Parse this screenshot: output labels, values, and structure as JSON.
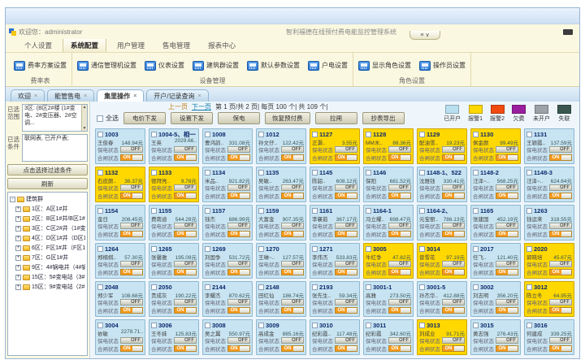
{
  "window": {
    "welcome": "欢迎您：administrator",
    "title": "智利福德在线预付费电能监控管理系统",
    "collapse_glyphs": "≡ ∨"
  },
  "menu": {
    "items": [
      {
        "label": "个人设置"
      },
      {
        "label": "系统配置",
        "active": true
      },
      {
        "label": "用户管理"
      },
      {
        "label": "售电管理"
      },
      {
        "label": "报表中心"
      }
    ]
  },
  "ribbon": {
    "groups": [
      {
        "label": "费率表",
        "buttons": [
          "费率方案设置"
        ]
      },
      {
        "label": "设备管理",
        "buttons": [
          "通信管理机设置",
          "仪表设置",
          "建筑群设置",
          "默认参数设置",
          "户电设置"
        ]
      },
      {
        "label": "角色设置",
        "buttons": [
          "显示角色设置",
          "操作员设置"
        ]
      }
    ]
  },
  "tabs": [
    {
      "label": "欢迎"
    },
    {
      "label": "能管售电"
    },
    {
      "label": "集里操作",
      "active": true
    },
    {
      "label": "开户/记录查询"
    }
  ],
  "sidebar": {
    "range_label": "已选范围",
    "range_text": "3区: (B区2#楼 (1#变电、2#变压器、2#空调...",
    "cond_label": "已选条件",
    "cond_text": "联网表, 已开户表;",
    "filter_button": "点击选择过滤条件",
    "refresh_button": "刷新",
    "tree_root": "建筑群",
    "tree_nodes": [
      {
        "label": "1区：A区1#井"
      },
      {
        "label": "2区：B区1#井/B区1#井"
      },
      {
        "label": "3区：C区2#井（1#变"
      },
      {
        "label": "4区：D区1#井（D区1"
      },
      {
        "label": "6区：F区1#井（F区1#"
      },
      {
        "label": "7区：G区1#井"
      },
      {
        "label": "9区：4#锅电井（4#锅"
      },
      {
        "label": "15区：5#变电站（3#变"
      },
      {
        "label": "15区：9#变电站（2#"
      }
    ]
  },
  "toolbar": {
    "prev": "上一页",
    "next": "下一页",
    "page_info": "第 1 页/共 2 页| 每页 100 个| 共 109 个|",
    "select_all": "全选",
    "buttons": [
      "电价下发",
      "设置下发",
      "保电",
      "恢复预付费",
      "拉闸",
      "抄表导出"
    ]
  },
  "legend": [
    {
      "label": "已开户",
      "color": "#b9dff0"
    },
    {
      "label": "报警1",
      "color": "#ffd800"
    },
    {
      "label": "报警2",
      "color": "#f04a11"
    },
    {
      "label": "欠费",
      "color": "#9a1f9e"
    },
    {
      "label": "未开户",
      "color": "#9da2a6"
    },
    {
      "label": "失联",
      "color": "#39564f"
    }
  ],
  "card_labels": {
    "power_protect": "保电状态",
    "switch": "合闸状态",
    "on": "ON",
    "off": "OFF"
  },
  "cards": [
    {
      "room": "1003",
      "name": "王俊春",
      "balance": "148.94元",
      "status": "open"
    },
    {
      "room": "1004-5、相一",
      "name": "王英",
      "balance": "2029.66..",
      "status": "open"
    },
    {
      "room": "1008",
      "name": "曹鸿韵..",
      "balance": "331.08元",
      "status": "open"
    },
    {
      "room": "1012",
      "name": "孙文仔..",
      "balance": "122.42元",
      "status": "open"
    },
    {
      "room": "1127",
      "name": "正灏..",
      "balance": "3.55元",
      "status": "alarm1"
    },
    {
      "room": "1128",
      "name": "MM木..",
      "balance": "88.36元",
      "status": "alarm1"
    },
    {
      "room": "1129",
      "name": "配油雪..",
      "balance": "19.23元",
      "status": "alarm1"
    },
    {
      "room": "1130",
      "name": "佩金颜",
      "balance": "99.49元",
      "status": "alarm1"
    },
    {
      "room": "1131",
      "name": "王颖霞..",
      "balance": "137.59元",
      "status": "open"
    },
    {
      "room": "1132",
      "name": "石皮颜..",
      "balance": "36.37元",
      "status": "alarm1"
    },
    {
      "room": "1133",
      "name": "德拜亮..",
      "balance": "9.78元",
      "status": "alarm1"
    },
    {
      "room": "1134",
      "name": "米品..",
      "balance": "921.82元",
      "status": "open"
    },
    {
      "room": "1135",
      "name": "吴敏..",
      "balance": "263.47元",
      "status": "open"
    },
    {
      "room": "1145",
      "name": "陈韶..",
      "balance": "608.12元",
      "status": "open"
    },
    {
      "room": "1146",
      "name": "保阳",
      "balance": "681.52元",
      "status": "open"
    },
    {
      "room": "1148-1、522",
      "name": "沈雅钱",
      "balance": "330.41元",
      "status": "open"
    },
    {
      "room": "1148-2",
      "name": "汪泽~..",
      "balance": "568.25元",
      "status": "open"
    },
    {
      "room": "1148-3",
      "name": "汪泽~..",
      "balance": "624.64元",
      "status": "open"
    },
    {
      "room": "1154",
      "name": "金日",
      "balance": "208.45元",
      "status": "open"
    },
    {
      "room": "1155",
      "name": "费南迪",
      "balance": "544.28元",
      "status": "open"
    },
    {
      "room": "1157",
      "name": "钱杰",
      "balance": "686.99元",
      "status": "open"
    },
    {
      "room": "1159",
      "name": "大富金",
      "balance": "907.35元",
      "status": "open"
    },
    {
      "room": "1161",
      "name": "李襄茹",
      "balance": "367.17元",
      "status": "open"
    },
    {
      "room": "1164-1",
      "name": "冯立耀..",
      "balance": "698.47元",
      "status": "open"
    },
    {
      "room": "1164-2、",
      "name": "元宝丽..",
      "balance": "786.13元",
      "status": "open"
    },
    {
      "room": "1165",
      "name": "张建国",
      "balance": "452.19元",
      "status": "open"
    },
    {
      "room": "1263",
      "name": "钱运来",
      "balance": "318.55元",
      "status": "open"
    },
    {
      "room": "1264",
      "name": "郑楠棋..",
      "balance": "57.30元",
      "status": "open"
    },
    {
      "room": "1265",
      "name": "张馨雅",
      "balance": "195.09元",
      "status": "open"
    },
    {
      "room": "1269",
      "name": "刘国争",
      "balance": "531.72元",
      "status": "open"
    },
    {
      "room": "1270",
      "name": "王琳~..",
      "balance": "127.57元",
      "status": "open"
    },
    {
      "room": "1271",
      "name": "李伟杰",
      "balance": "533.83元",
      "status": "open"
    },
    {
      "room": "3005",
      "name": "牛红争",
      "balance": "47.82元",
      "status": "alarm1"
    },
    {
      "room": "3014",
      "name": "曾雪花",
      "balance": "97.19元",
      "status": "alarm1"
    },
    {
      "room": "2017",
      "name": "任飞..",
      "balance": "121.40元",
      "status": "open"
    },
    {
      "room": "2020",
      "name": "郭晓培",
      "balance": "45.67元",
      "status": "alarm1"
    },
    {
      "room": "2048",
      "name": "郑少军",
      "balance": "108.68元",
      "status": "open"
    },
    {
      "room": "2050",
      "name": "贵成灰",
      "balance": "190.22元",
      "status": "open"
    },
    {
      "room": "2144",
      "name": "李耀杰",
      "balance": "870.62元",
      "status": "open"
    },
    {
      "room": "2148",
      "name": "田红仙",
      "balance": "186.74元",
      "status": "open"
    },
    {
      "room": "2193",
      "name": "张先生..",
      "balance": "59.34元",
      "status": "open"
    },
    {
      "room": "3001-1",
      "name": "高雅",
      "balance": "273.50元",
      "status": "open"
    },
    {
      "room": "3001-5",
      "name": "孙杰华..",
      "balance": "412.88元",
      "status": "open"
    },
    {
      "room": "3002",
      "name": "刘志明",
      "balance": "356.20元",
      "status": "open"
    },
    {
      "room": "3012",
      "name": "陈立冬",
      "balance": "64.95元",
      "status": "alarm1"
    },
    {
      "room": "3004",
      "name": "依敏",
      "balance": "2278.71..",
      "status": "open"
    },
    {
      "room": "3006",
      "name": "王冬妹",
      "balance": "125.83元",
      "status": "open"
    },
    {
      "room": "3008",
      "name": "吴之翼",
      "balance": "550.97元",
      "status": "open"
    },
    {
      "room": "3009",
      "name": "高成金",
      "balance": "885.16元",
      "status": "open"
    },
    {
      "room": "3010",
      "name": "纪彩霞..",
      "balance": "117.48元",
      "status": "open"
    },
    {
      "room": "3011",
      "name": "纪彩霞",
      "balance": "342.60元",
      "status": "open"
    },
    {
      "room": "3013",
      "name": "刘成业",
      "balance": "91.71元",
      "status": "alarm1"
    },
    {
      "room": "3015",
      "name": "黄志强",
      "balance": "276.43元",
      "status": "open"
    },
    {
      "room": "3016",
      "name": "何建成",
      "balance": "339.25元",
      "status": "open"
    }
  ]
}
